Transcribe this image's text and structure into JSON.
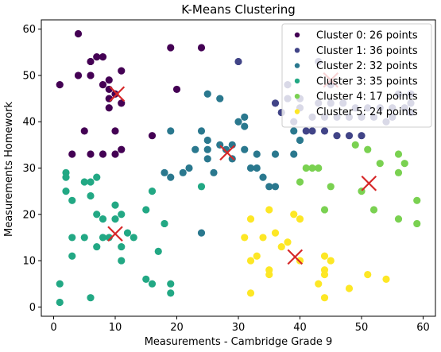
{
  "chart_data": {
    "type": "scatter",
    "title": "K-Means Clustering",
    "xlabel": "Measurements - Cambridge Grade 9",
    "ylabel": "Measurements Homework",
    "xlim": [
      -2,
      62
    ],
    "ylim": [
      -2,
      62
    ],
    "xticks": [
      0,
      10,
      20,
      30,
      40,
      50,
      60
    ],
    "yticks": [
      0,
      10,
      20,
      30,
      40,
      50,
      60
    ],
    "grid": false,
    "legend_position": "top-right",
    "series": [
      {
        "name": "Cluster 0: 26 points",
        "color": "#440154",
        "points": [
          [
            4,
            59
          ],
          [
            6,
            53
          ],
          [
            7,
            54
          ],
          [
            8,
            54
          ],
          [
            11,
            51
          ],
          [
            4,
            50
          ],
          [
            6,
            50
          ],
          [
            9,
            49
          ],
          [
            1,
            48
          ],
          [
            9,
            47
          ],
          [
            10,
            46
          ],
          [
            20,
            47
          ],
          [
            9,
            45
          ],
          [
            11,
            44
          ],
          [
            9,
            43
          ],
          [
            5,
            38
          ],
          [
            10,
            38
          ],
          [
            16,
            37
          ],
          [
            24,
            56
          ],
          [
            19,
            56
          ],
          [
            11,
            34
          ],
          [
            3,
            33
          ],
          [
            6,
            33
          ],
          [
            8,
            33
          ],
          [
            10,
            33
          ],
          [
            8,
            48
          ]
        ]
      },
      {
        "name": "Cluster 1: 36 points",
        "color": "#414487",
        "points": [
          [
            30,
            53
          ],
          [
            38,
            48
          ],
          [
            43,
            53
          ],
          [
            45,
            48
          ],
          [
            38,
            45
          ],
          [
            40,
            45
          ],
          [
            36,
            44
          ],
          [
            40,
            43
          ],
          [
            42,
            41
          ],
          [
            44,
            41
          ],
          [
            46,
            41
          ],
          [
            48,
            41
          ],
          [
            56,
            46
          ],
          [
            58,
            46
          ],
          [
            58,
            44
          ],
          [
            57,
            43
          ],
          [
            58,
            42
          ],
          [
            55,
            41
          ],
          [
            52,
            41
          ],
          [
            50,
            41
          ],
          [
            42,
            38
          ],
          [
            44,
            38
          ],
          [
            46,
            37
          ],
          [
            48,
            37
          ],
          [
            50,
            37
          ],
          [
            41,
            38
          ],
          [
            39,
            40
          ],
          [
            37,
            42
          ],
          [
            43,
            44
          ],
          [
            45,
            44
          ],
          [
            47,
            44
          ],
          [
            49,
            43
          ],
          [
            51,
            43
          ],
          [
            53,
            43
          ],
          [
            55,
            43
          ],
          [
            54,
            40
          ]
        ]
      },
      {
        "name": "Cluster 2: 32 points",
        "color": "#2a788e",
        "points": [
          [
            25,
            46
          ],
          [
            27,
            45
          ],
          [
            19,
            38
          ],
          [
            24,
            38
          ],
          [
            30,
            40
          ],
          [
            31,
            39
          ],
          [
            31,
            41
          ],
          [
            25,
            36
          ],
          [
            25,
            34
          ],
          [
            23,
            34
          ],
          [
            27,
            35
          ],
          [
            28,
            34
          ],
          [
            29,
            35
          ],
          [
            33,
            33
          ],
          [
            36,
            33
          ],
          [
            39,
            33
          ],
          [
            40,
            36
          ],
          [
            39,
            38
          ],
          [
            31,
            34
          ],
          [
            18,
            29
          ],
          [
            19,
            28
          ],
          [
            21,
            29
          ],
          [
            22,
            30
          ],
          [
            25,
            32
          ],
          [
            26,
            29
          ],
          [
            29,
            32
          ],
          [
            32,
            30
          ],
          [
            33,
            30
          ],
          [
            34,
            28
          ],
          [
            35,
            26
          ],
          [
            36,
            26
          ],
          [
            24,
            16
          ]
        ]
      },
      {
        "name": "Cluster 3: 35 points",
        "color": "#22a884",
        "points": [
          [
            2,
            29
          ],
          [
            2,
            28
          ],
          [
            5,
            27
          ],
          [
            6,
            27
          ],
          [
            7,
            28
          ],
          [
            2,
            25
          ],
          [
            3,
            23
          ],
          [
            6,
            24
          ],
          [
            10,
            22
          ],
          [
            11,
            20
          ],
          [
            7,
            20
          ],
          [
            8,
            19
          ],
          [
            10,
            19
          ],
          [
            3,
            15
          ],
          [
            5,
            15
          ],
          [
            8,
            15
          ],
          [
            9,
            15
          ],
          [
            12,
            16
          ],
          [
            13,
            15
          ],
          [
            7,
            13
          ],
          [
            11,
            13
          ],
          [
            3,
            11
          ],
          [
            11,
            10
          ],
          [
            15,
            21
          ],
          [
            16,
            25
          ],
          [
            18,
            18
          ],
          [
            17,
            12
          ],
          [
            19,
            5
          ],
          [
            19,
            3
          ],
          [
            15,
            6
          ],
          [
            16,
            5
          ],
          [
            1,
            5
          ],
          [
            1,
            1
          ],
          [
            6,
            2
          ],
          [
            24,
            26
          ]
        ]
      },
      {
        "name": "Cluster 4: 17 points",
        "color": "#7ad151",
        "points": [
          [
            49,
            35
          ],
          [
            51,
            34
          ],
          [
            56,
            33
          ],
          [
            57,
            31
          ],
          [
            53,
            31
          ],
          [
            56,
            29
          ],
          [
            43,
            30
          ],
          [
            41,
            30
          ],
          [
            42,
            30
          ],
          [
            40,
            27
          ],
          [
            45,
            26
          ],
          [
            44,
            21
          ],
          [
            50,
            25
          ],
          [
            52,
            21
          ],
          [
            56,
            19
          ],
          [
            59,
            23
          ],
          [
            59,
            18
          ]
        ]
      },
      {
        "name": "Cluster 5: 24 points",
        "color": "#fde725",
        "points": [
          [
            32,
            19
          ],
          [
            35,
            21
          ],
          [
            39,
            20
          ],
          [
            40,
            19
          ],
          [
            36,
            16
          ],
          [
            31,
            15
          ],
          [
            34,
            15
          ],
          [
            38,
            14
          ],
          [
            33,
            11
          ],
          [
            32,
            10
          ],
          [
            37,
            13
          ],
          [
            35,
            8
          ],
          [
            35,
            7
          ],
          [
            40,
            10
          ],
          [
            44,
            11
          ],
          [
            45,
            10
          ],
          [
            44,
            8
          ],
          [
            44,
            7
          ],
          [
            43,
            5
          ],
          [
            44,
            2
          ],
          [
            51,
            7
          ],
          [
            54,
            6
          ],
          [
            48,
            4
          ],
          [
            32,
            3
          ]
        ]
      }
    ],
    "centroids": {
      "color": "#d62728",
      "points": [
        [
          10.3,
          46
        ],
        [
          28.2,
          33.3
        ],
        [
          10,
          15.8
        ],
        [
          51.2,
          26.7
        ],
        [
          39.2,
          10.8
        ],
        [
          45,
          49
        ]
      ]
    }
  }
}
